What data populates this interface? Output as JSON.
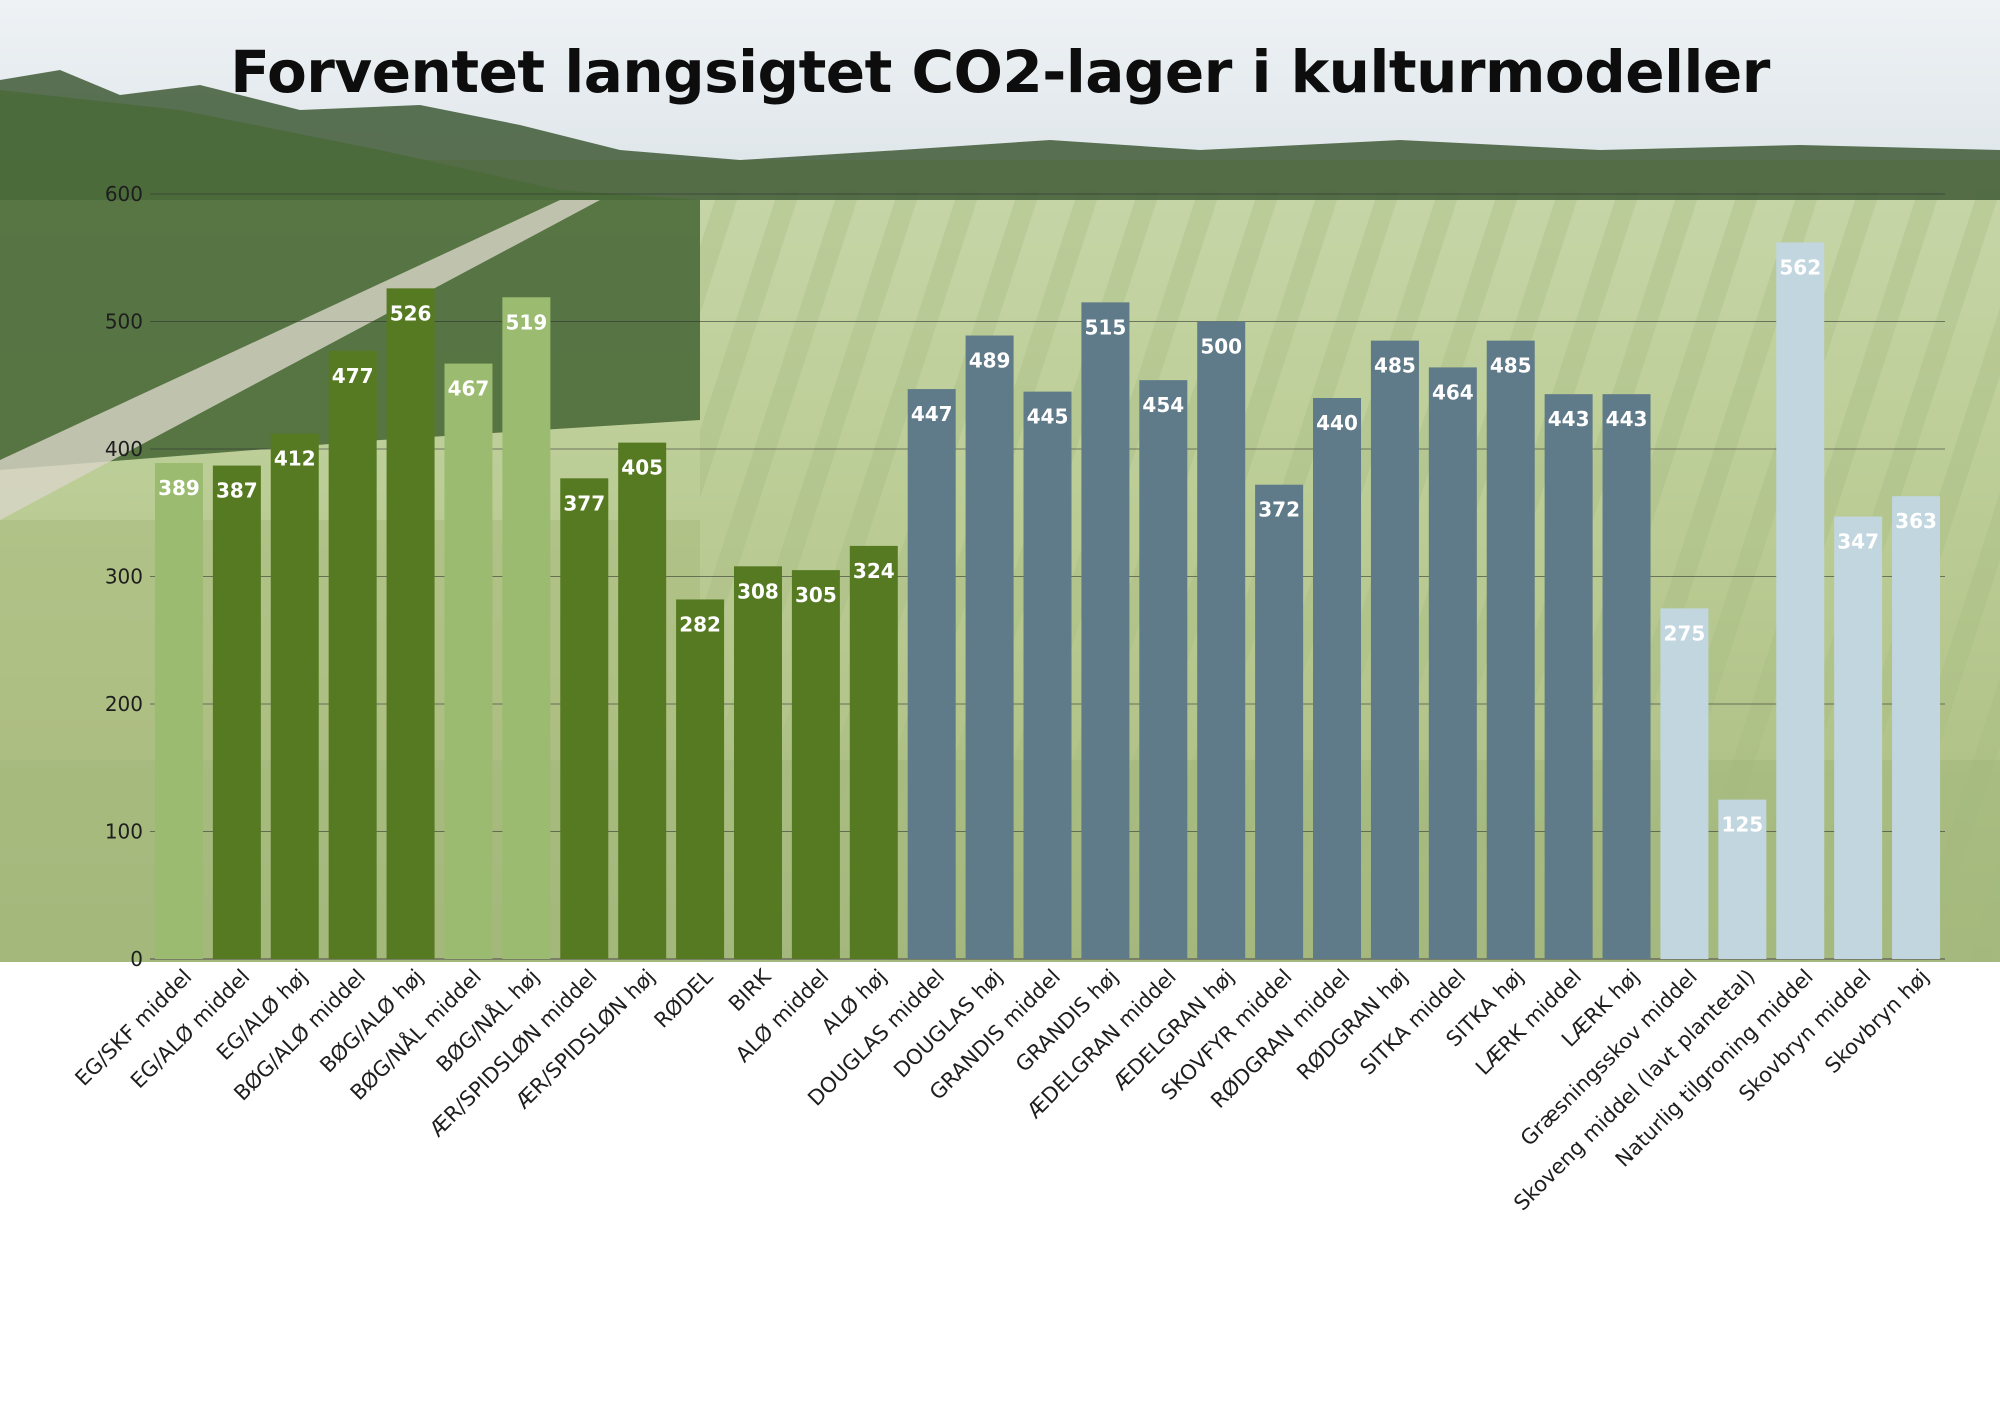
{
  "chart_data": {
    "type": "bar",
    "title": "Forventet langsigtet CO2-lager i kulturmodeller",
    "xlabel": "",
    "ylabel": "",
    "ylim": [
      0,
      600
    ],
    "yticks": [
      0,
      100,
      200,
      300,
      400,
      500,
      600
    ],
    "grid": true,
    "legend": "none",
    "categories": [
      "EG/SKF middel",
      "EG/ALØ middel",
      "EG/ALØ høj",
      "BØG/ALØ middel",
      "BØG/ALØ høj",
      "BØG/NÅL middel",
      "BØG/NÅL høj",
      "ÆR/SPIDSLØN middel",
      "ÆR/SPIDSLØN høj",
      "RØDEL",
      "BIRK",
      "ALØ middel",
      "ALØ høj",
      "DOUGLAS middel",
      "DOUGLAS høj",
      "GRANDIS middel",
      "GRANDIS høj",
      "ÆDELGRAN middel",
      "ÆDELGRAN høj",
      "SKOVFYR middel",
      "RØDGRAN middel",
      "RØDGRAN høj",
      "SITKA middel",
      "SITKA høj",
      "LÆRK middel",
      "LÆRK høj",
      "Græsningsskov middel",
      "Skoveng middel (lavt plantetal)",
      "Naturlig tilgroning middel",
      "Skovbryn middel",
      "Skovbryn høj"
    ],
    "values": [
      389,
      387,
      412,
      477,
      526,
      467,
      519,
      377,
      405,
      282,
      308,
      305,
      324,
      447,
      489,
      445,
      515,
      454,
      500,
      372,
      440,
      485,
      464,
      485,
      443,
      443,
      275,
      125,
      562,
      347,
      363
    ],
    "bar_colors": [
      "#9bbb70",
      "#567a22",
      "#567a22",
      "#567a22",
      "#567a22",
      "#9bbb70",
      "#9bbb70",
      "#567a22",
      "#567a22",
      "#567a22",
      "#567a22",
      "#567a22",
      "#567a22",
      "#5f7a88",
      "#5f7a88",
      "#5f7a88",
      "#5f7a88",
      "#5f7a88",
      "#5f7a88",
      "#5f7a88",
      "#5f7a88",
      "#5f7a88",
      "#5f7a88",
      "#5f7a88",
      "#5f7a88",
      "#5f7a88",
      "#c1d6df",
      "#c1d6df",
      "#c1d6df",
      "#c1d6df",
      "#c1d6df"
    ]
  }
}
